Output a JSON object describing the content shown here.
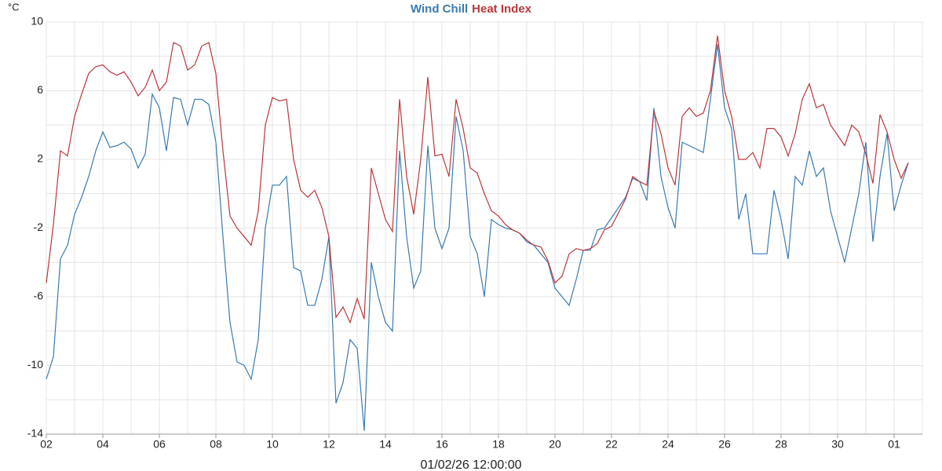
{
  "chart_data": {
    "type": "line",
    "y_unit": "°C",
    "x_label": "01/02/26 12:00:00",
    "categories": [
      "02",
      null,
      null,
      null,
      null,
      null,
      null,
      null,
      "04",
      null,
      null,
      null,
      null,
      null,
      null,
      null,
      "06",
      null,
      null,
      null,
      null,
      null,
      null,
      null,
      "08",
      null,
      null,
      null,
      null,
      null,
      null,
      null,
      "10",
      null,
      null,
      null,
      null,
      null,
      null,
      null,
      "12",
      null,
      null,
      null,
      null,
      null,
      null,
      null,
      "14",
      null,
      null,
      null,
      null,
      null,
      null,
      null,
      "16",
      null,
      null,
      null,
      null,
      null,
      null,
      null,
      "18",
      null,
      null,
      null,
      null,
      null,
      null,
      null,
      "20",
      null,
      null,
      null,
      null,
      null,
      null,
      null,
      "22",
      null,
      null,
      null,
      null,
      null,
      null,
      null,
      "24",
      null,
      null,
      null,
      null,
      null,
      null,
      null,
      "26",
      null,
      null,
      null,
      null,
      null,
      null,
      null,
      "28",
      null,
      null,
      null,
      null,
      null,
      null,
      null,
      "30",
      null,
      null,
      null,
      null,
      null,
      null,
      null,
      "01",
      null,
      null
    ],
    "series": [
      {
        "name": "Wind Chill",
        "color": "#3a7ab0",
        "values": [
          -10.8,
          -9.5,
          -3.8,
          -3.0,
          -1.2,
          -0.2,
          1.0,
          2.5,
          3.6,
          2.7,
          2.8,
          3.0,
          2.6,
          1.5,
          2.3,
          5.8,
          5.0,
          2.5,
          5.6,
          5.5,
          4.0,
          5.5,
          5.5,
          5.2,
          3.0,
          -2.5,
          -7.5,
          -9.8,
          -10.0,
          -10.8,
          -8.5,
          -2.0,
          0.5,
          0.5,
          1.0,
          -4.3,
          -4.5,
          -6.5,
          -6.5,
          -5.0,
          -2.5,
          -12.2,
          -11.0,
          -8.5,
          -9.0,
          -13.8,
          -4.0,
          -6.0,
          -7.5,
          -8.0,
          2.5,
          -2.5,
          -5.5,
          -4.5,
          2.8,
          -2.0,
          -3.2,
          -2.0,
          4.5,
          2.5,
          -2.5,
          -3.5,
          -6.0,
          -1.5,
          -1.8,
          -2.0,
          -2.1,
          -2.3,
          -2.8,
          -3.0,
          -3.5,
          -4.0,
          -5.5,
          -6.0,
          -6.5,
          -5.0,
          -3.3,
          -3.3,
          -2.1,
          -2.0,
          -1.4,
          -0.8,
          -0.2,
          0.9,
          0.7,
          -0.4,
          5.0,
          1.0,
          -0.8,
          -2.0,
          3.0,
          2.8,
          2.6,
          2.4,
          5.5,
          8.7,
          5.0,
          3.8,
          -1.5,
          0.0,
          -3.5,
          -3.5,
          -3.5,
          0.2,
          -1.5,
          -3.8,
          1.0,
          0.5,
          2.5,
          1.0,
          1.5,
          -1.0,
          -2.5,
          -4.0,
          -2.0,
          0.0,
          3.0,
          -2.8,
          1.0,
          3.5,
          -1.0,
          0.5,
          1.8
        ]
      },
      {
        "name": "Heat Index",
        "color": "#b8383c",
        "values": [
          -5.2,
          -1.8,
          2.5,
          2.2,
          4.5,
          5.8,
          7.0,
          7.4,
          7.5,
          7.1,
          6.9,
          7.1,
          6.5,
          5.7,
          6.2,
          7.2,
          6.0,
          6.5,
          8.8,
          8.6,
          7.2,
          7.5,
          8.6,
          8.8,
          7.0,
          2.5,
          -1.3,
          -2.0,
          -2.5,
          -3.0,
          -1.0,
          4.0,
          5.6,
          5.4,
          5.5,
          2.0,
          0.2,
          -0.2,
          0.2,
          -0.8,
          -2.5,
          -7.2,
          -6.6,
          -7.5,
          -6.1,
          -7.3,
          1.5,
          0.0,
          -1.5,
          -2.2,
          5.5,
          1.0,
          -1.2,
          2.0,
          6.8,
          2.2,
          2.3,
          1.0,
          5.5,
          3.8,
          1.5,
          1.2,
          0.0,
          -1.0,
          -1.3,
          -1.8,
          -2.1,
          -2.3,
          -2.7,
          -3.0,
          -3.1,
          -3.9,
          -5.2,
          -4.8,
          -3.5,
          -3.2,
          -3.3,
          -3.2,
          -2.9,
          -2.1,
          -1.9,
          -1.1,
          -0.3,
          1.0,
          0.7,
          0.5,
          4.8,
          3.5,
          1.5,
          0.5,
          4.5,
          5.0,
          4.5,
          4.7,
          6.0,
          9.2,
          6.0,
          4.5,
          2.0,
          2.0,
          2.4,
          1.5,
          3.8,
          3.8,
          3.3,
          2.2,
          3.5,
          5.5,
          6.4,
          5.0,
          5.2,
          4.0,
          3.4,
          2.8,
          4.0,
          3.6,
          2.3,
          0.6,
          4.6,
          3.6,
          2.0,
          0.9,
          1.8
        ]
      }
    ],
    "ylim": [
      -14,
      10
    ],
    "yticks": [
      -14,
      -10,
      -6,
      -2,
      2,
      6,
      10
    ],
    "grid": true
  }
}
